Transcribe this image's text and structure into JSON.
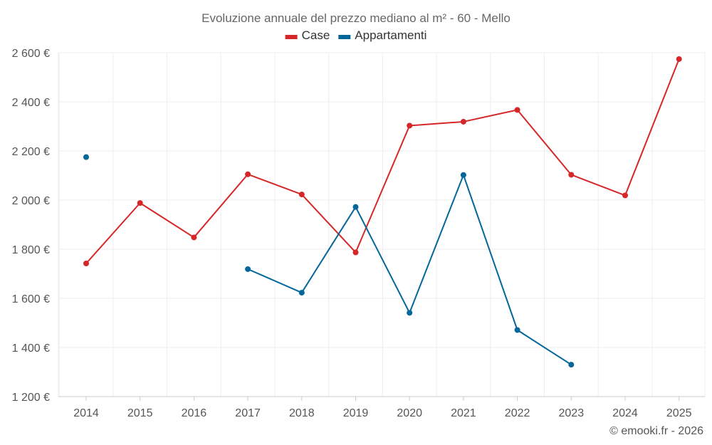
{
  "chart_data": {
    "type": "line",
    "title": "Evoluzione annuale del prezzo mediano al m² - 60 - Mello",
    "categories": [
      "2014",
      "2015",
      "2016",
      "2017",
      "2018",
      "2019",
      "2020",
      "2021",
      "2022",
      "2023",
      "2024",
      "2025"
    ],
    "ylim": [
      1200,
      2600
    ],
    "yticks": [
      1200,
      1400,
      1600,
      1800,
      2000,
      2200,
      2400,
      2600
    ],
    "ytick_labels": [
      "1 200 €",
      "1 400 €",
      "1 600 €",
      "1 800 €",
      "2 000 €",
      "2 200 €",
      "2 400 €",
      "2 600 €"
    ],
    "grid": true,
    "legend_position": "top-center",
    "series": [
      {
        "name": "Case",
        "color": "#d62728",
        "values": [
          1742,
          1988,
          1848,
          2105,
          2023,
          1787,
          2303,
          2319,
          2367,
          2103,
          2019,
          2574
        ]
      },
      {
        "name": "Appartamenti",
        "color": "#04679a",
        "values": [
          2175,
          null,
          null,
          1719,
          1623,
          1972,
          1541,
          2102,
          1471,
          1330,
          null,
          null
        ]
      }
    ]
  },
  "footer": {
    "copyright": "© emooki.fr - 2026"
  }
}
